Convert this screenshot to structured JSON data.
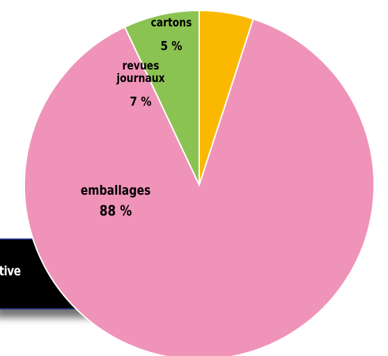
{
  "banner": {
    "text": "ctive"
  },
  "chart_data": {
    "type": "pie",
    "title": "",
    "colors": {
      "emballages": "#f093b8",
      "revues-journaux": "#8bc352",
      "cartons": "#fbb800",
      "slice_border": "#ffffff"
    },
    "slices": [
      {
        "key": "cartons",
        "label_lines": [
          "cartons"
        ],
        "value": 5,
        "value_label": "5 %",
        "color": "#fbb800"
      },
      {
        "key": "emballages",
        "label_lines": [
          "emballages"
        ],
        "value": 88,
        "value_label": "88 %",
        "color": "#f093b8"
      },
      {
        "key": "revues-journaux",
        "label_lines": [
          "revues",
          "journaux"
        ],
        "value": 7,
        "value_label": "7 %",
        "color": "#8bc352"
      }
    ],
    "start": "12 o'clock, clockwise",
    "legend": "none (labels on slices)"
  }
}
